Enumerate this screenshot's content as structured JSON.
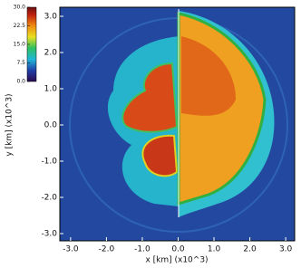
{
  "chart_data": {
    "type": "image",
    "xlabel": "x [km] (x10^3)",
    "ylabel": "y [km] (x10^3)",
    "xlim": [
      -3.3,
      3.25
    ],
    "ylim": [
      -3.2,
      3.25
    ],
    "xticks": [
      {
        "value": -3,
        "label": "-3.0"
      },
      {
        "value": -2,
        "label": "-2.0"
      },
      {
        "value": -1,
        "label": "-1.0"
      },
      {
        "value": 0,
        "label": "0.0"
      },
      {
        "value": 1,
        "label": "1.0"
      },
      {
        "value": 2,
        "label": "2.0"
      },
      {
        "value": 3,
        "label": "3.0"
      }
    ],
    "yticks": [
      {
        "value": -3,
        "label": "-3.0"
      },
      {
        "value": -2,
        "label": "-2.0"
      },
      {
        "value": -1,
        "label": "-1.0"
      },
      {
        "value": 0,
        "label": "0.0"
      },
      {
        "value": 1,
        "label": "1.0"
      },
      {
        "value": 2,
        "label": "2.0"
      },
      {
        "value": 3,
        "label": "3.0"
      }
    ],
    "colorbar": {
      "lim": [
        0,
        30
      ],
      "ticks": [
        {
          "value": 0,
          "label": "0.0"
        },
        7.5,
        {
          "value": 15,
          "label": "15.0"
        },
        22.5,
        {
          "value": 30,
          "label": "30.0"
        }
      ]
    }
  }
}
